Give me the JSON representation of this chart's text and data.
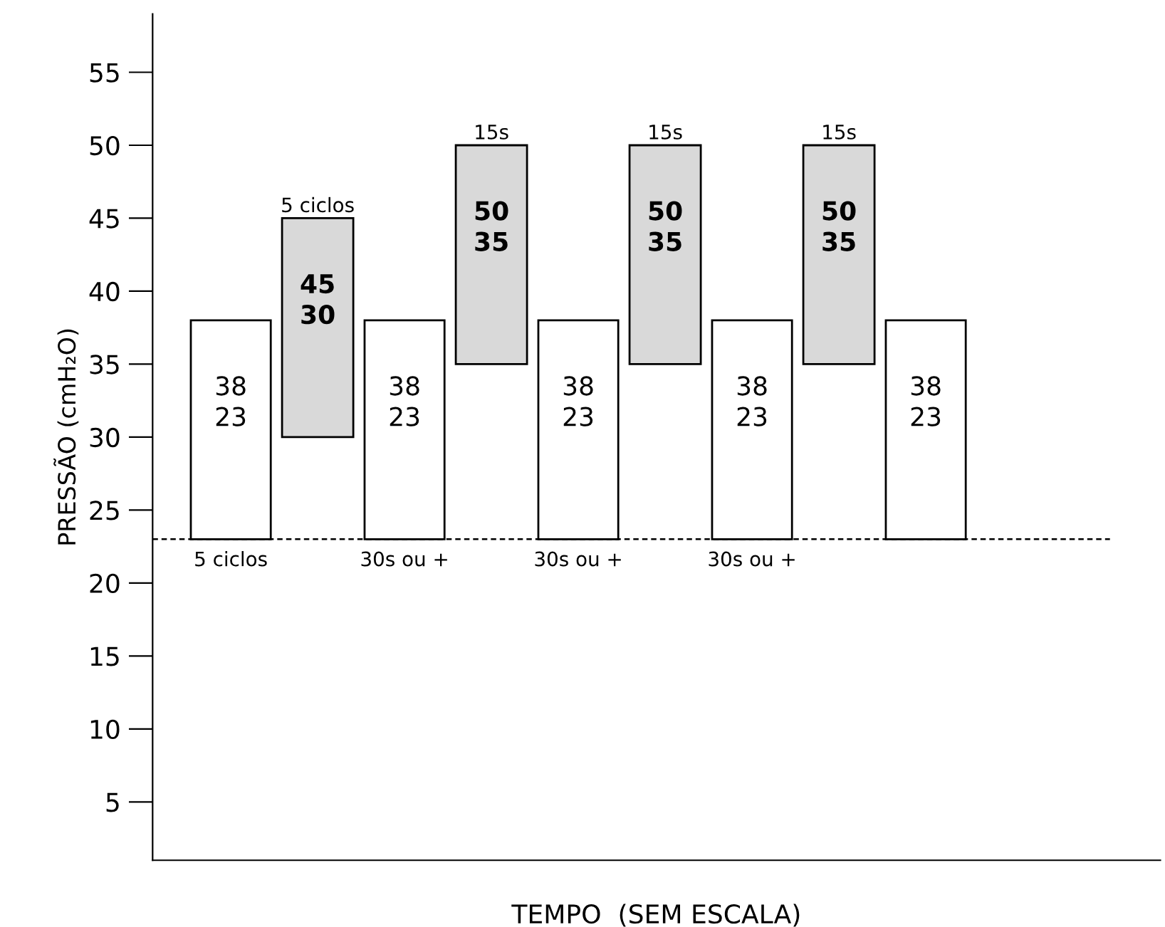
{
  "chart_data": {
    "type": "bar",
    "xlabel": "TEMPO  (SEM ESCALA)",
    "ylabel": "PRESSÃO (cmH₂O)",
    "categories": [
      "5 ciclos",
      null,
      "30s ou +",
      null,
      "30s ou +",
      null,
      "30s ou +",
      null,
      null
    ],
    "base": [
      23,
      30,
      23,
      35,
      23,
      35,
      23,
      35,
      23
    ],
    "values": [
      15,
      15,
      15,
      15,
      15,
      15,
      15,
      15,
      15
    ],
    "colors": [
      "#ffffff",
      "#d9d9d9",
      "#ffffff",
      "#d9d9d9",
      "#ffffff",
      "#d9d9d9",
      "#ffffff",
      "#d9d9d9",
      "#ffffff"
    ],
    "annotations": [
      "38\n23",
      "45\n30",
      "38\n23",
      "50\n35",
      "38\n23",
      "50\n35",
      "38\n23",
      "50\n35",
      "38\n23",
      "5 ciclos",
      "15s",
      "15s",
      "15s"
    ],
    "ref_lines": [
      {
        "axis": "y",
        "value": 23,
        "label": null,
        "color": "#000000",
        "line_style": "dashed"
      }
    ],
    "ylim": [
      1,
      59
    ],
    "yticks": [
      5,
      10,
      15,
      20,
      25,
      30,
      35,
      40,
      45,
      50,
      55
    ],
    "tick_labels": "y",
    "grid": false,
    "legend": false
  }
}
